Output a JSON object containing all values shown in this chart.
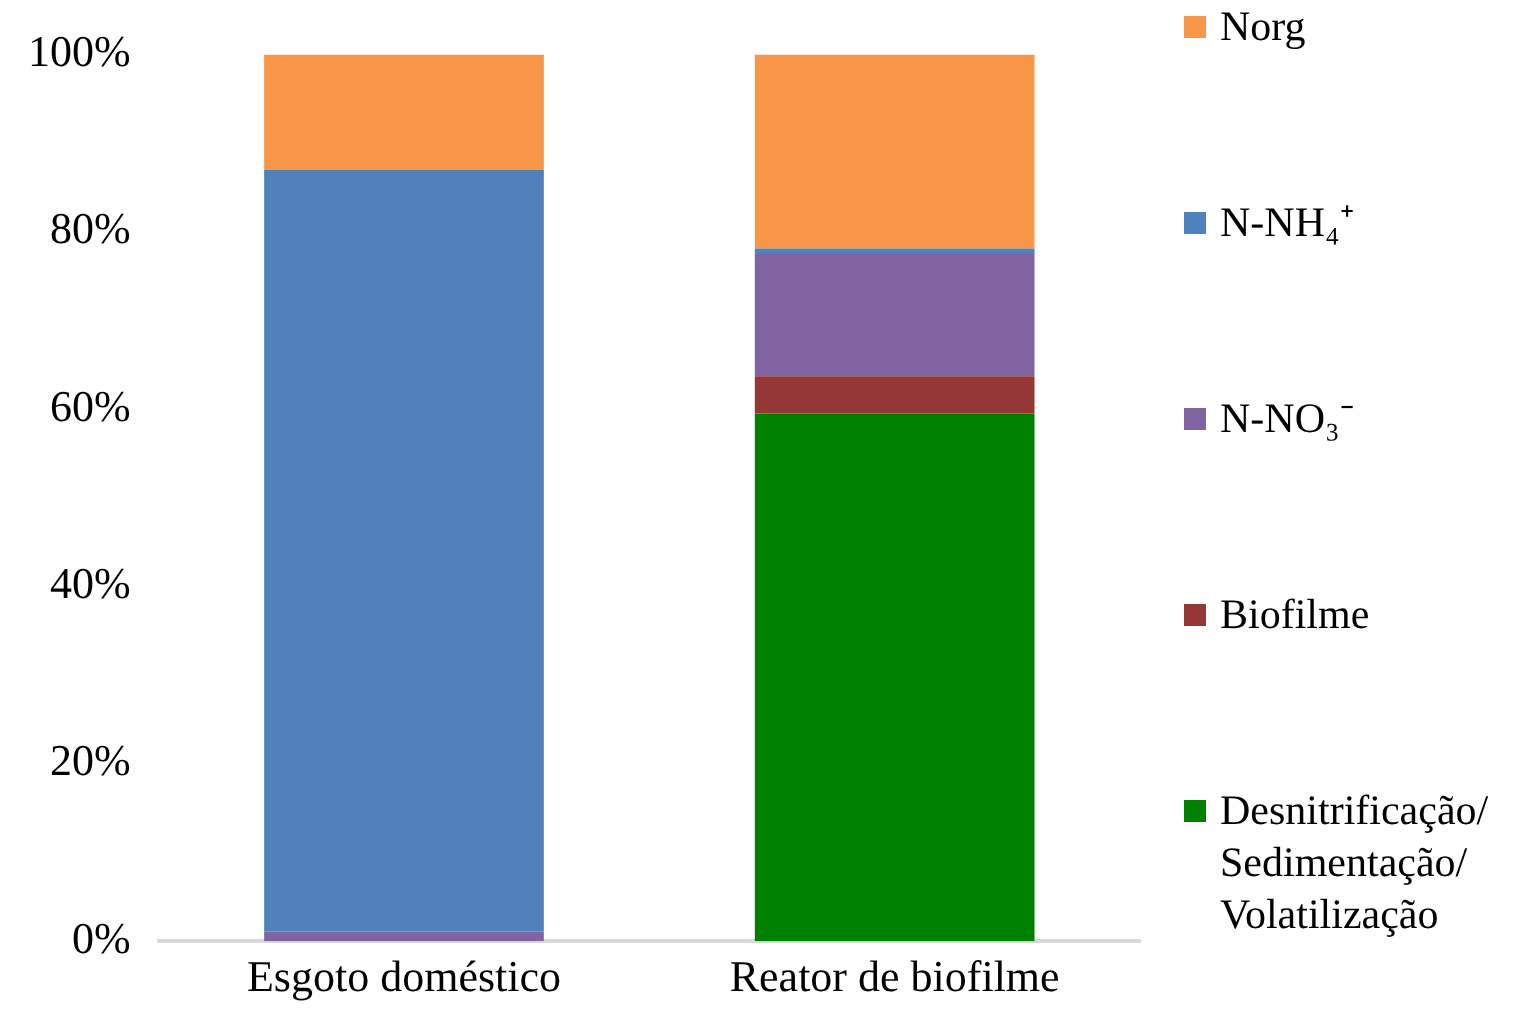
{
  "chart_data": {
    "type": "bar",
    "stacked": true,
    "categories": [
      "Esgoto doméstico",
      "Reator de biofilme"
    ],
    "series": [
      {
        "name": "Desnitrificação/ Sedimentação/ Volatilização",
        "color": "#008000",
        "values": [
          0,
          59.5
        ]
      },
      {
        "name": "Biofilme",
        "color": "#953735",
        "values": [
          0,
          4.2
        ]
      },
      {
        "name": "N-NO₃⁻",
        "color": "#8064a2",
        "values": [
          1.1,
          13.9
        ]
      },
      {
        "name": "N-NH₄⁺",
        "color": "#4f81bd",
        "values": [
          85.9,
          0.5
        ]
      },
      {
        "name": "Norg",
        "color": "#f79646",
        "values": [
          13,
          21.9
        ]
      }
    ],
    "ylim": [
      0,
      100
    ],
    "yticks": [
      {
        "value": 0,
        "label": "0%"
      },
      {
        "value": 20,
        "label": "20%"
      },
      {
        "value": 40,
        "label": "40%"
      },
      {
        "value": 60,
        "label": "60%"
      },
      {
        "value": 80,
        "label": "80%"
      },
      {
        "value": 100,
        "label": "100%"
      }
    ],
    "grid": false,
    "legend": "right"
  }
}
